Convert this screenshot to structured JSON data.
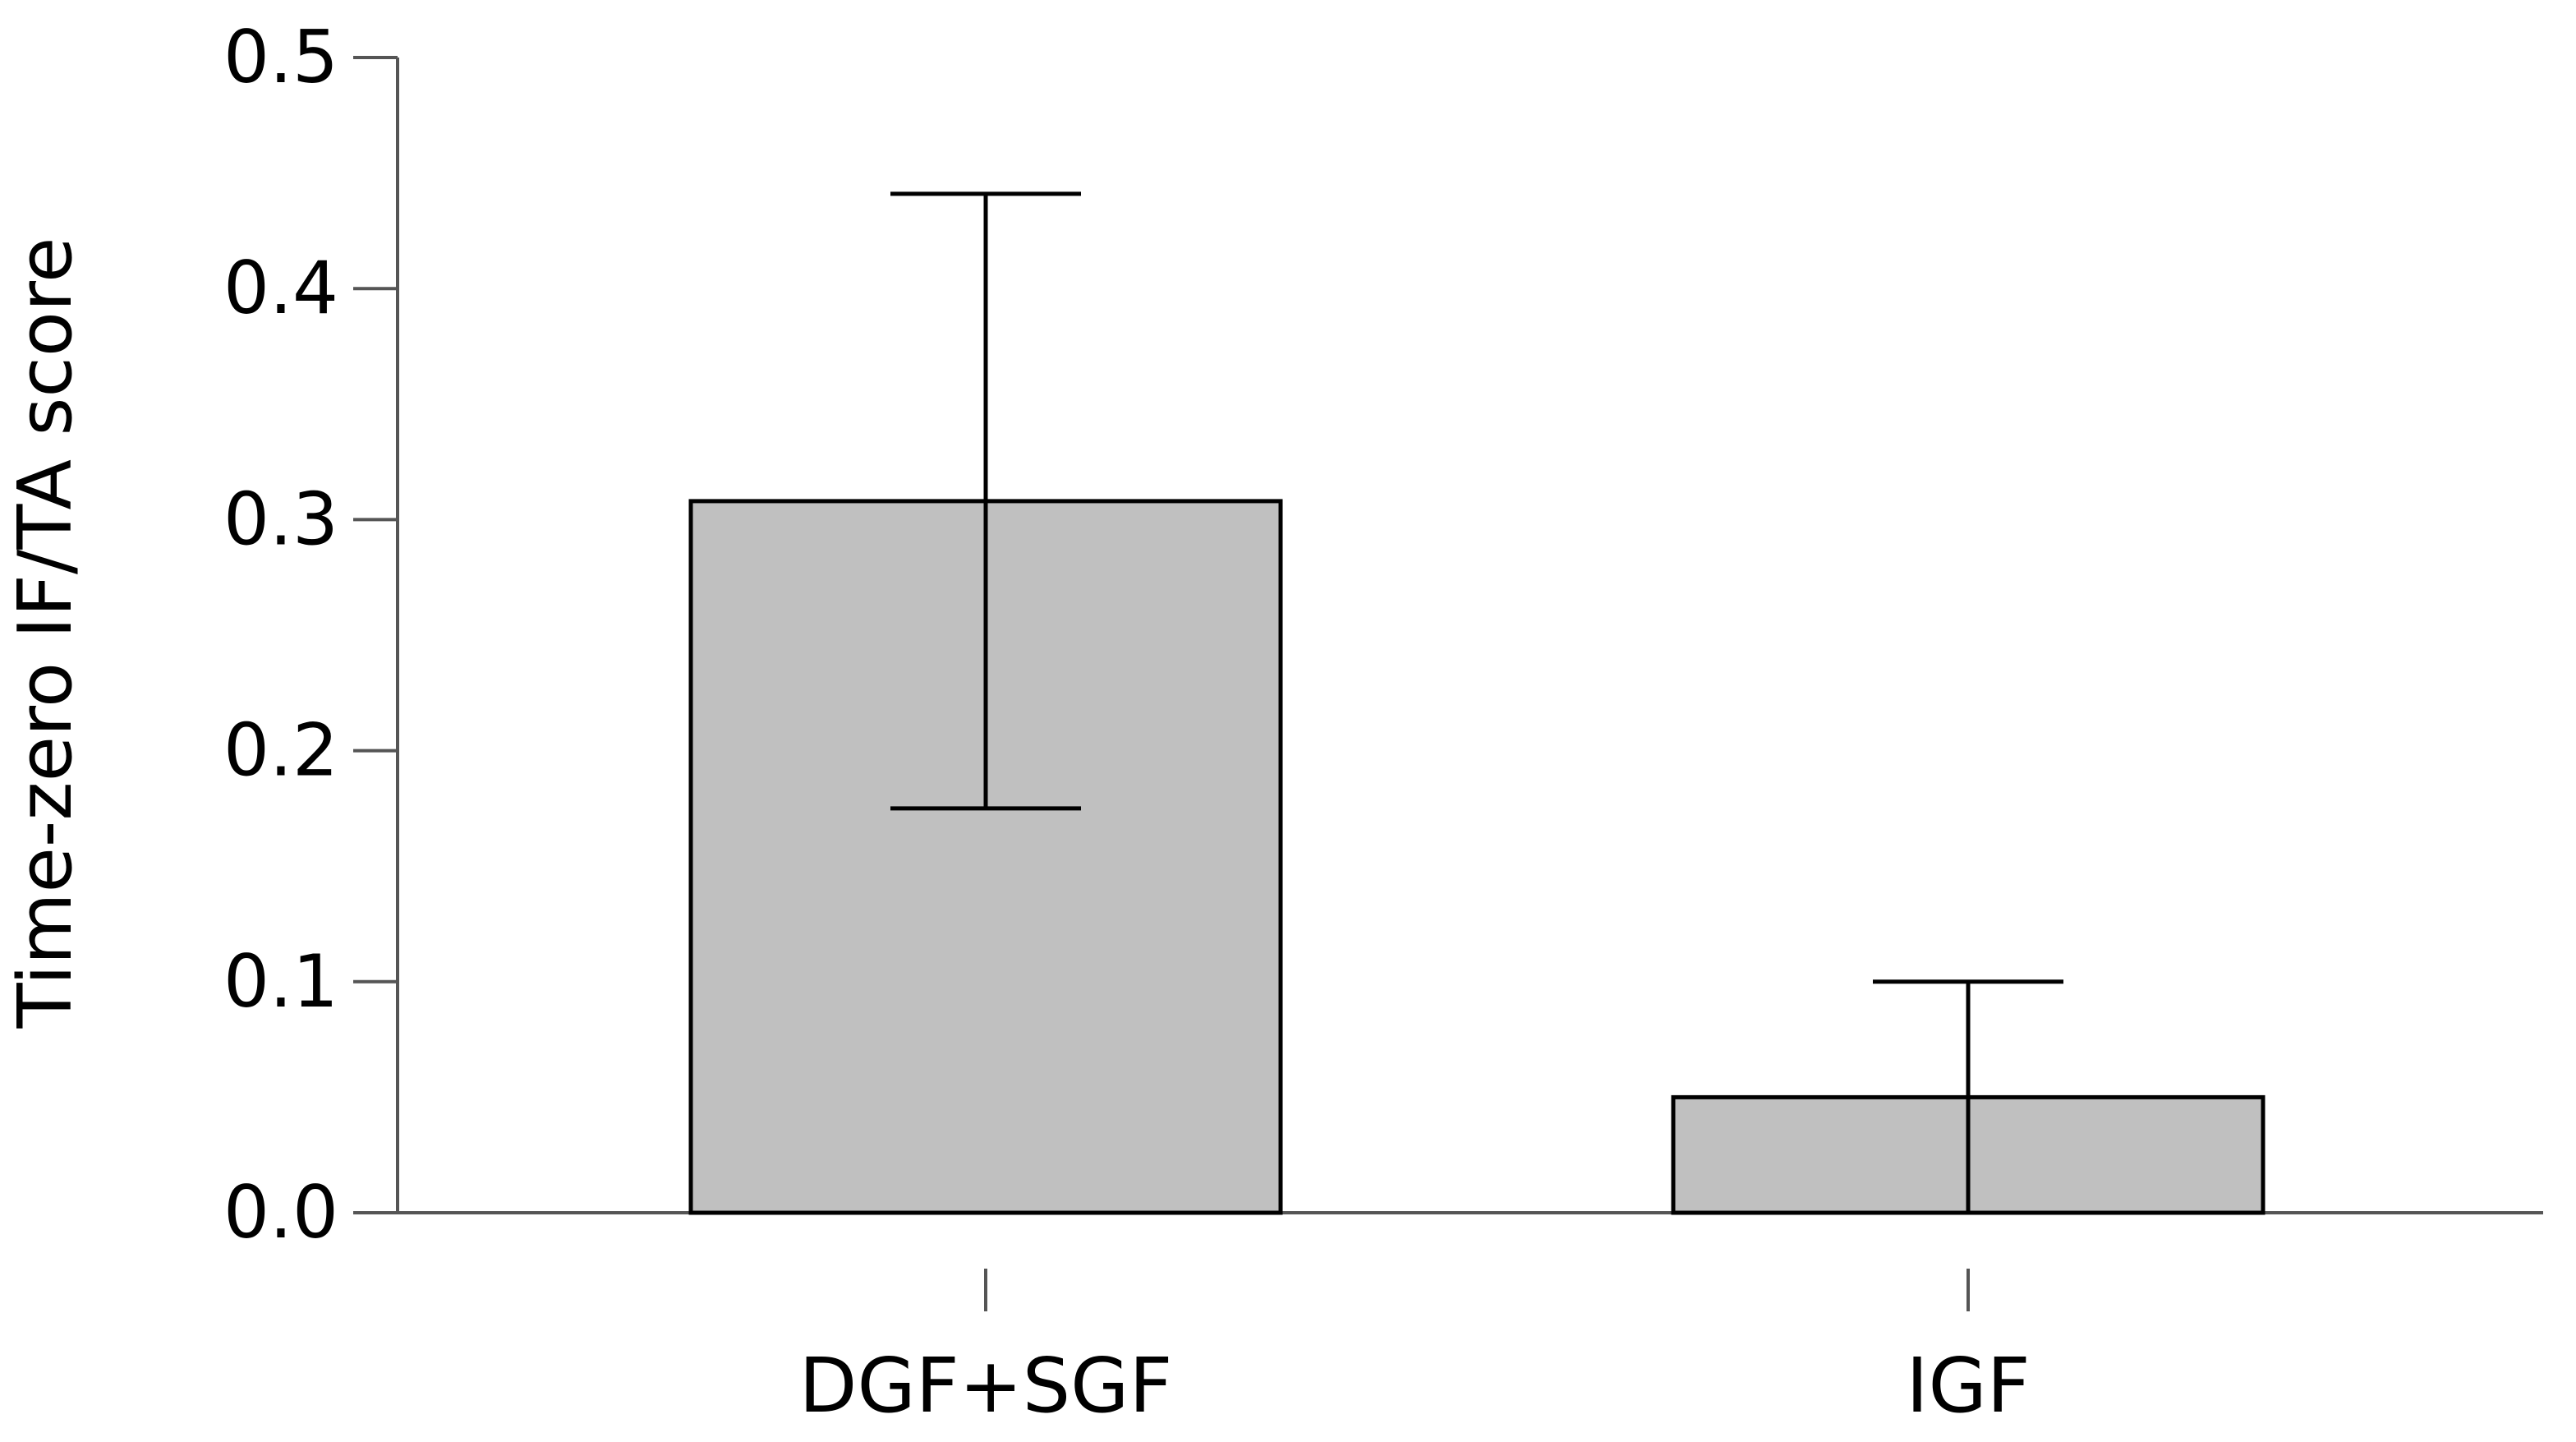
{
  "chart_data": {
    "type": "bar",
    "title": "",
    "xlabel": "",
    "ylabel": "Time-zero IF/TA score",
    "categories": [
      "DGF+SGF",
      "IGF"
    ],
    "values": [
      0.308,
      0.05
    ],
    "error_bars": {
      "upper": [
        0.441,
        0.1
      ],
      "lower": [
        0.175,
        0.0
      ]
    },
    "ylim": [
      0,
      0.5
    ],
    "yticks": [
      "0.0",
      "0.1",
      "0.2",
      "0.3",
      "0.4",
      "0.5"
    ],
    "grid": false,
    "legend": "none",
    "colors": {
      "bar_fill": "#c0c0c0",
      "bar_stroke": "#000000",
      "axis": "#555555",
      "error_bar": "#000000"
    }
  }
}
